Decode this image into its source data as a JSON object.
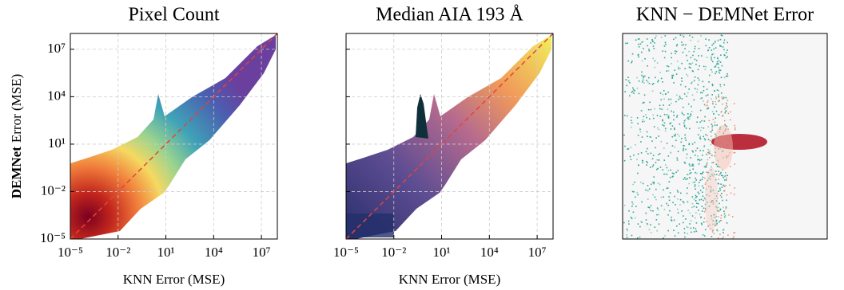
{
  "chart_data": [
    {
      "type": "heatmap",
      "title": "Pixel Count",
      "xlabel": "KNN Error (MSE)",
      "ylabel": [
        "DEMNet",
        "Error (MSE)"
      ],
      "xscale": "log",
      "yscale": "log",
      "grid": true,
      "xlim": [
        1e-05,
        100000000
      ],
      "ylim": [
        1e-05,
        100000000
      ],
      "xticks": [
        {
          "value": 1e-05,
          "label": "10⁻⁵"
        },
        {
          "value": 0.01,
          "label": "10⁻²"
        },
        {
          "value": 10,
          "label": "10¹"
        },
        {
          "value": 10000,
          "label": "10⁴"
        },
        {
          "value": 10000000,
          "label": "10⁷"
        }
      ],
      "yticks": [
        {
          "value": 1e-05,
          "label": "10⁻⁵"
        },
        {
          "value": 0.01,
          "label": "10⁻²"
        },
        {
          "value": 10,
          "label": "10¹"
        },
        {
          "value": 10000,
          "label": "10⁴"
        },
        {
          "value": 10000000,
          "label": "10⁷"
        }
      ]
    },
    {
      "type": "heatmap",
      "title": "Median AIA 193 Å",
      "xlabel": "KNN Error (MSE)",
      "xscale": "log",
      "yscale": "log",
      "grid": true,
      "xlim": [
        1e-05,
        100000000
      ],
      "ylim": [
        1e-05,
        100000000
      ],
      "xticks": [
        {
          "value": 1e-05,
          "label": "10⁻⁵"
        },
        {
          "value": 0.01,
          "label": "10⁻²"
        },
        {
          "value": 10,
          "label": "10¹"
        },
        {
          "value": 10000,
          "label": "10⁴"
        },
        {
          "value": 10000000,
          "label": "10⁷"
        }
      ],
      "yticks": [
        1e-05,
        0.01,
        10,
        10000,
        10000000
      ]
    },
    {
      "type": "image",
      "title": "KNN − DEMNet Error"
    }
  ]
}
